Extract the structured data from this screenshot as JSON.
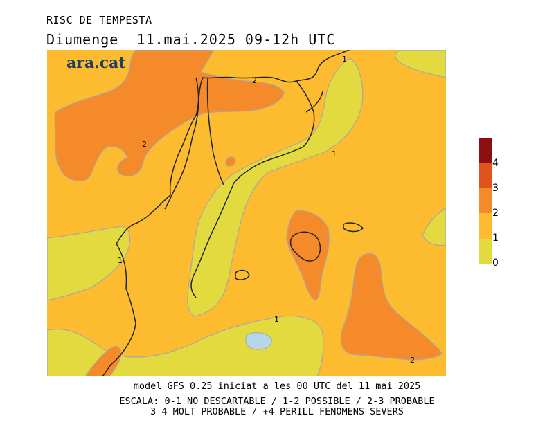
{
  "header": {
    "title": "RISC DE TEMPESTA",
    "subtitle": "Diumenge  11.mai.2025 09-12h UTC"
  },
  "brand": {
    "name": "ara.cat",
    "color": "#1c3f63"
  },
  "map": {
    "contour_labels": [
      "1",
      "2",
      "2",
      "1",
      "1",
      "1",
      "2"
    ],
    "colors": {
      "level_0_1": "#e3da40",
      "level_1_2": "#fdbb30",
      "level_2_3": "#f58a2a",
      "level_3_4": "#e0521e",
      "level_4_plus": "#8c1010",
      "water": "#b6d7ea",
      "contour_line": "#a7a7a7",
      "coastline": "#222222"
    }
  },
  "legend": {
    "levels": [
      {
        "label": "4",
        "color": "#8c1010"
      },
      {
        "label": "3",
        "color": "#e0521e"
      },
      {
        "label": "2",
        "color": "#f58a2a"
      },
      {
        "label": "1",
        "color": "#fdbb30"
      },
      {
        "label": "0",
        "color": "#e3da40"
      }
    ]
  },
  "footer": {
    "line1": "model GFS 0.25 iniciat a les 00 UTC del 11 mai 2025",
    "line2": "ESCALA: 0-1 NO DESCARTABLE / 1-2 POSSIBLE / 2-3 PROBABLE",
    "line3": "3-4 MOLT PROBABLE / +4 PERILL FENOMENS SEVERS"
  }
}
